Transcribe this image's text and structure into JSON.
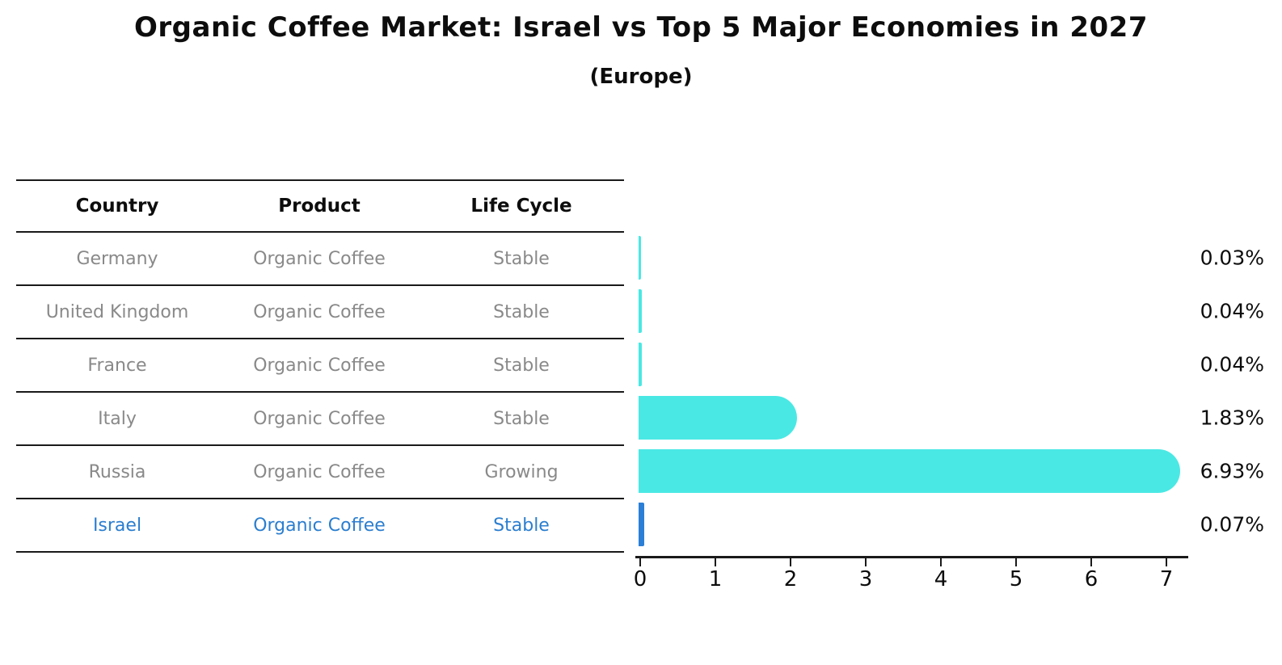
{
  "title": "Organic Coffee Market: Israel vs Top 5 Major Economies in 2027",
  "subtitle": "(Europe)",
  "table": {
    "headers": [
      "Country",
      "Product",
      "Life Cycle"
    ],
    "rows": [
      {
        "country": "Germany",
        "product": "Organic Coffee",
        "life_cycle": "Stable",
        "highlighted": false
      },
      {
        "country": "United Kingdom",
        "product": "Organic Coffee",
        "life_cycle": "Stable",
        "highlighted": false
      },
      {
        "country": "France",
        "product": "Organic Coffee",
        "life_cycle": "Stable",
        "highlighted": false
      },
      {
        "country": "Italy",
        "product": "Organic Coffee",
        "life_cycle": "Stable",
        "highlighted": false
      },
      {
        "country": "Russia",
        "product": "Organic Coffee",
        "life_cycle": "Growing",
        "highlighted": false
      },
      {
        "country": "Israel",
        "product": "Organic Coffee",
        "life_cycle": "Stable",
        "highlighted": true
      }
    ]
  },
  "chart_data": {
    "type": "bar",
    "orientation": "horizontal",
    "title": "Organic Coffee Market: Israel vs Top 5 Major Economies in 2027",
    "subtitle": "(Europe)",
    "categories": [
      "Germany",
      "United Kingdom",
      "France",
      "Italy",
      "Russia",
      "Israel"
    ],
    "values": [
      0.03,
      0.04,
      0.04,
      1.83,
      6.93,
      0.07
    ],
    "labels": [
      "0.03%",
      "0.04%",
      "0.04%",
      "1.83%",
      "6.93%",
      "0.07%"
    ],
    "x_ticks": [
      "0",
      "1",
      "2",
      "3",
      "4",
      "5",
      "6",
      "7"
    ],
    "xlim": [
      0,
      7.35
    ],
    "grid": false,
    "legend": "none",
    "bar_color": "#4ae8e4",
    "highlight_color": "#2b7fd6",
    "highlight_index": 5
  },
  "colors": {
    "bar_cyan": "#4ae8e4",
    "israel_blue": "#2b7fd6",
    "table_gray_text": "#898989",
    "table_blue_text": "#2b7ecf",
    "axis_black": "#1a1a1a"
  }
}
